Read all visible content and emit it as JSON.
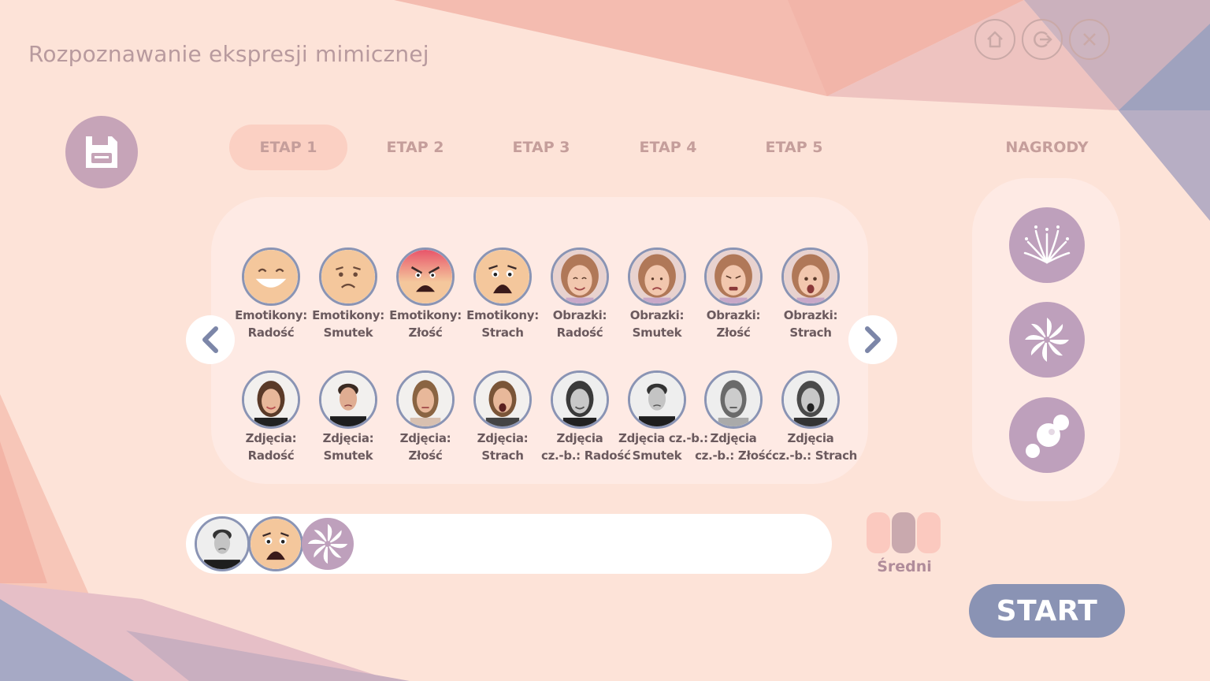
{
  "app": {
    "title": "Rozpoznawanie ekspresji mimicznej"
  },
  "top_buttons": [
    {
      "name": "home-icon"
    },
    {
      "name": "logout-icon"
    },
    {
      "name": "close-icon"
    }
  ],
  "save": {
    "icon": "floppy-disk-icon"
  },
  "tabs": [
    {
      "label": "ETAP 1",
      "active": true
    },
    {
      "label": "ETAP 2",
      "active": false
    },
    {
      "label": "ETAP 3",
      "active": false
    },
    {
      "label": "ETAP 4",
      "active": false
    },
    {
      "label": "ETAP 5",
      "active": false
    }
  ],
  "rewards": {
    "label": "NAGRODY",
    "items": [
      {
        "icon": "fireworks-icon"
      },
      {
        "icon": "pinwheel-icon"
      },
      {
        "icon": "bubbles-icon"
      }
    ]
  },
  "grid": {
    "row1": [
      {
        "line1": "Emotikony:",
        "line2": "Radość",
        "kind": "emoji-happy"
      },
      {
        "line1": "Emotikony:",
        "line2": "Smutek",
        "kind": "emoji-sad"
      },
      {
        "line1": "Emotikony:",
        "line2": "Złość",
        "kind": "emoji-angry"
      },
      {
        "line1": "Emotikony:",
        "line2": "Strach",
        "kind": "emoji-fear"
      },
      {
        "line1": "Obrazki:",
        "line2": "Radość",
        "kind": "drawing"
      },
      {
        "line1": "Obrazki:",
        "line2": "Smutek",
        "kind": "drawing"
      },
      {
        "line1": "Obrazki:",
        "line2": "Złość",
        "kind": "drawing"
      },
      {
        "line1": "Obrazki:",
        "line2": "Strach",
        "kind": "drawing"
      }
    ],
    "row2": [
      {
        "line1": "Zdjęcia:",
        "line2": "Radość",
        "kind": "photo-woman"
      },
      {
        "line1": "Zdjęcia:",
        "line2": "Smutek",
        "kind": "photo-man"
      },
      {
        "line1": "Zdjęcia:",
        "line2": "Złość",
        "kind": "photo-woman"
      },
      {
        "line1": "Zdjęcia:",
        "line2": "Strach",
        "kind": "photo-woman"
      },
      {
        "line1": "Zdjęcia",
        "line2": "cz.-b.: Radość",
        "kind": "photo-bw-woman"
      },
      {
        "line1": "Zdjęcia cz.-b.:",
        "line2": "Smutek",
        "kind": "photo-bw-man"
      },
      {
        "line1": "Zdjęcia",
        "line2": "cz.-b.: Złość",
        "kind": "photo-bw-woman"
      },
      {
        "line1": "Zdjęcia",
        "line2": "cz.-b.: Strach",
        "kind": "photo-bw-woman"
      }
    ]
  },
  "selection": [
    {
      "kind": "photo-man"
    },
    {
      "kind": "emoji-fear"
    },
    {
      "kind": "pinwheel"
    }
  ],
  "difficulty": {
    "label": "Średni",
    "level": 2,
    "max": 3
  },
  "start": {
    "label": "START"
  },
  "colors": {
    "accent": "#8a93b4",
    "reward": "#bea0bc",
    "background": "#fde3d8"
  }
}
